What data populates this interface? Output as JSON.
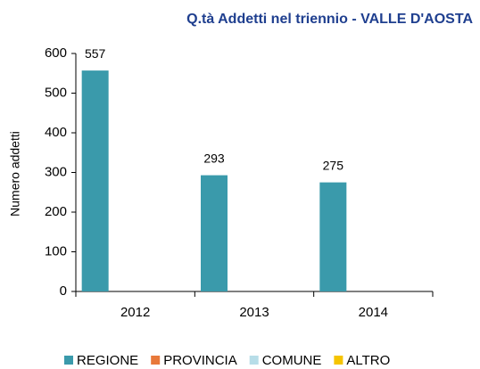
{
  "chart_data": {
    "type": "bar",
    "title": "Q.tà Addetti nel triennio - VALLE D'AOSTA",
    "y_label": "Numero addetti",
    "categories": [
      "2012",
      "2013",
      "2014"
    ],
    "series": [
      {
        "name": "REGIONE",
        "color": "#3a9aab",
        "values": [
          557,
          293,
          275
        ],
        "data_labels": true
      },
      {
        "name": "PROVINCIA",
        "color": "#e8793a",
        "values": [
          0,
          0,
          0
        ],
        "data_labels": false
      },
      {
        "name": "COMUNE",
        "color": "#b7dde8",
        "values": [
          0,
          0,
          0
        ],
        "data_labels": false
      },
      {
        "name": "ALTRO",
        "color": "#f5c400",
        "values": [
          0,
          0,
          0
        ],
        "data_labels": false
      }
    ],
    "ylim": [
      0,
      600
    ],
    "yticks": [
      0,
      100,
      200,
      300,
      400,
      500,
      600
    ],
    "grid": false,
    "legend": "bottom"
  }
}
